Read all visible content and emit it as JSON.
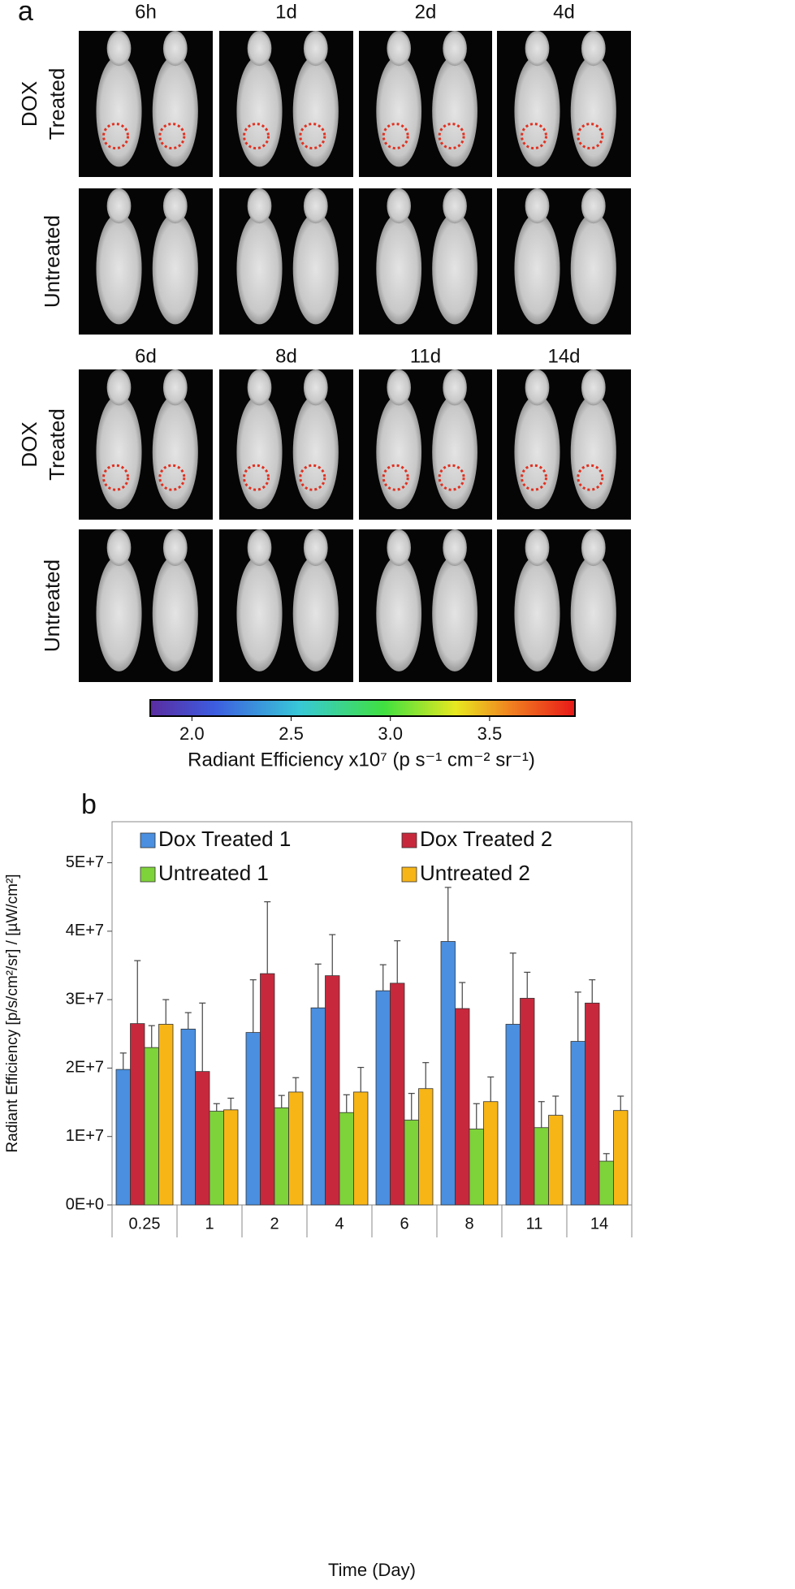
{
  "panel_a": {
    "label": "a",
    "timepoints_top": [
      "6h",
      "1d",
      "2d",
      "4d"
    ],
    "timepoints_bottom": [
      "6d",
      "8d",
      "11d",
      "14d"
    ],
    "row_labels": {
      "treated": [
        "DOX",
        "Treated"
      ],
      "untreated": "Untreated"
    },
    "colorbar": {
      "range": [
        1.79,
        3.93
      ],
      "ticks": [
        {
          "value": 2,
          "label": "2.0"
        },
        {
          "value": 2.5,
          "label": "2.5"
        },
        {
          "value": 3,
          "label": "3.0"
        },
        {
          "value": 3.5,
          "label": "3.5"
        }
      ],
      "label": "Radiant Efficiency x10⁷ (p s⁻¹ cm⁻² sr⁻¹)"
    }
  },
  "chart_data": {
    "type": "bar",
    "panel_label": "b",
    "x_label": "Time (Day)",
    "y_label": "Radiant Efficiency [p/s/cm²/sr] / [µW/cm²]",
    "categories": [
      "0.25",
      "1",
      "2",
      "4",
      "6",
      "8",
      "11",
      "14"
    ],
    "series": [
      {
        "name": "Dox Treated 1",
        "color": "#4a8fe0",
        "values": [
          19800000,
          25700000,
          25200000,
          28800000,
          31300000,
          38500000,
          26400000,
          23900000
        ],
        "errors": [
          2400000,
          2400000,
          7700000,
          6400000,
          3800000,
          7900000,
          10400000,
          7200000
        ]
      },
      {
        "name": "Dox Treated 2",
        "color": "#c8283c",
        "values": [
          26500000,
          19500000,
          33800000,
          33500000,
          32400000,
          28700000,
          30200000,
          29500000
        ],
        "errors": [
          9200000,
          10000000,
          10500000,
          6000000,
          6200000,
          3800000,
          3800000,
          3400000
        ]
      },
      {
        "name": "Untreated 1",
        "color": "#7ed23a",
        "values": [
          23000000,
          13700000,
          14200000,
          13500000,
          12400000,
          11100000,
          11300000,
          6400000
        ],
        "errors": [
          3200000,
          1100000,
          1800000,
          2600000,
          3900000,
          3700000,
          3800000,
          1100000
        ]
      },
      {
        "name": "Untreated 2",
        "color": "#f7b516",
        "values": [
          26400000,
          13900000,
          16500000,
          16500000,
          17000000,
          15100000,
          13100000,
          13800000
        ],
        "errors": [
          3600000,
          1700000,
          2100000,
          3600000,
          3800000,
          3600000,
          2800000,
          2100000
        ]
      }
    ],
    "ylim": [
      0,
      56000000
    ],
    "yticks": [
      {
        "value": 0,
        "label": "0E+0"
      },
      {
        "value": 10000000,
        "label": "1E+7"
      },
      {
        "value": 20000000,
        "label": "2E+7"
      },
      {
        "value": 30000000,
        "label": "3E+7"
      },
      {
        "value": 40000000,
        "label": "4E+7"
      },
      {
        "value": 50000000,
        "label": "5E+7"
      }
    ],
    "grid": false,
    "legend": "top"
  }
}
